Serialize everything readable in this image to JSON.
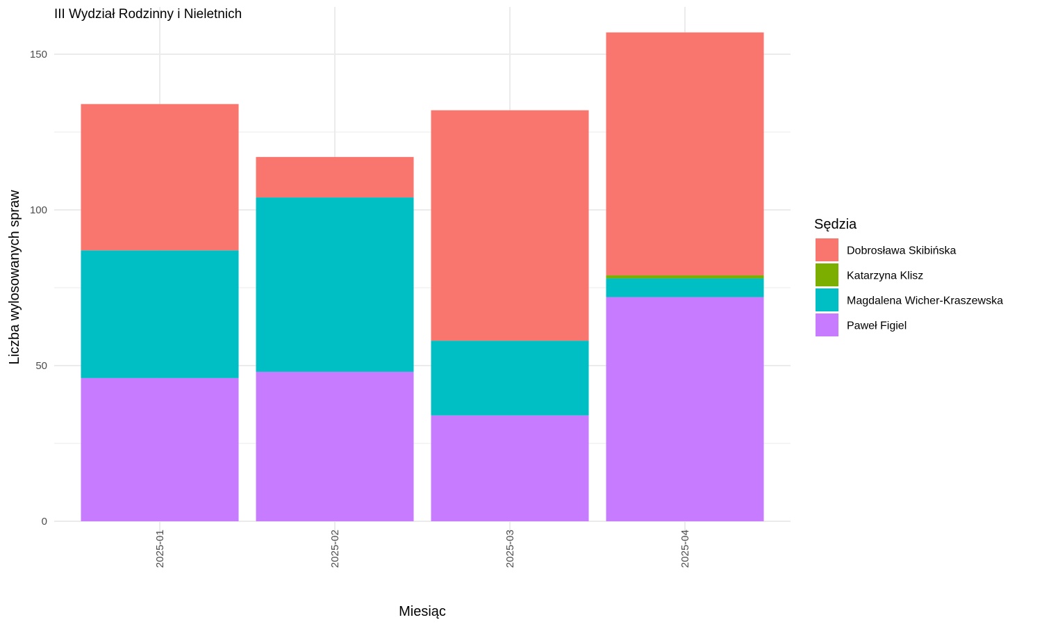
{
  "chart_data": {
    "type": "bar",
    "stacked": true,
    "title": "III Wydział Rodzinny i Nieletnich",
    "xlabel": "Miesiąc",
    "ylabel": "Liczba wylosowanych spraw",
    "categories": [
      "2025-01",
      "2025-02",
      "2025-03",
      "2025-04"
    ],
    "ylim": [
      0,
      160
    ],
    "yticks": [
      0,
      50,
      100,
      150
    ],
    "grid": true,
    "legend": {
      "title": "Sędzia",
      "position": "right"
    },
    "series": [
      {
        "name": "Dobrosława Skibińska",
        "color": "#F8766D",
        "values": [
          47,
          13,
          74,
          78
        ]
      },
      {
        "name": "Katarzyna Klisz",
        "color": "#7CAE00",
        "values": [
          0,
          0,
          0,
          1
        ]
      },
      {
        "name": "Magdalena Wicher-Kraszewska",
        "color": "#00BFC4",
        "values": [
          41,
          56,
          24,
          6
        ]
      },
      {
        "name": "Paweł Figiel",
        "color": "#C77CFF",
        "values": [
          46,
          48,
          34,
          72
        ]
      }
    ]
  }
}
